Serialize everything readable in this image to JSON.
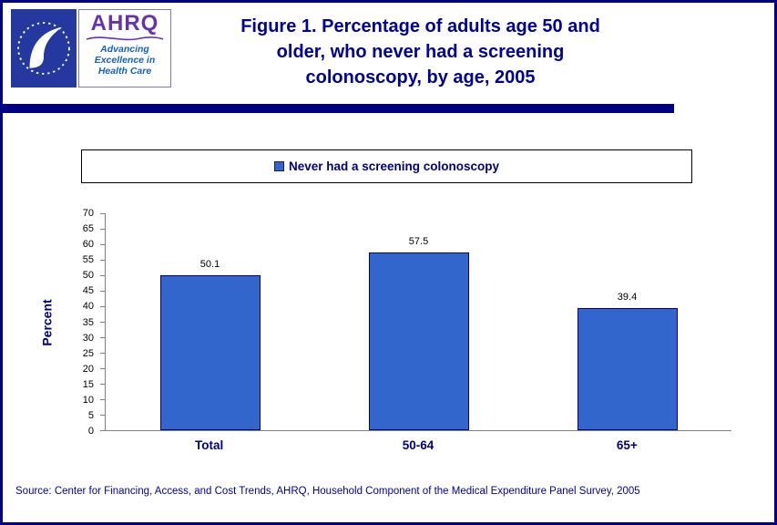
{
  "header": {
    "title_lines": [
      "Figure 1. Percentage of adults age 50 and",
      "older, who never had a screening",
      "colonoscopy, by age, 2005"
    ]
  },
  "logos": {
    "hhs": "HHS seal",
    "ahrq_acronym": "AHRQ",
    "ahrq_tagline_lines": [
      "Advancing",
      "Excellence in",
      "Health Care"
    ]
  },
  "legend": {
    "label": "Never had a screening colonoscopy",
    "swatch_color": "#3366CC"
  },
  "chart_data": {
    "type": "bar",
    "title": "Figure 1. Percentage of adults age 50 and older, who never had a screening colonoscopy, by age, 2005",
    "categories": [
      "Total",
      "50-64",
      "65+"
    ],
    "values": [
      50.1,
      57.5,
      39.4
    ],
    "value_labels": [
      "50.1",
      "57.5",
      "39.4"
    ],
    "series_name": "Never had a screening colonoscopy",
    "xlabel": "",
    "ylabel": "Percent",
    "ylim": [
      0,
      70
    ],
    "ytick_step": 5,
    "grid": false,
    "legend_position": "top",
    "bar_color": "#3366CC",
    "bar_border_color": "#00006b"
  },
  "footer": {
    "source": "Source: Center for Financing, Access, and Cost Trends, AHRQ, Household Component of the Medical Expenditure Panel Survey, 2005"
  },
  "colors": {
    "title_text": "#000099",
    "accent_bar": "#000080",
    "legend_text": "#000080",
    "axis_line": "#808080"
  }
}
